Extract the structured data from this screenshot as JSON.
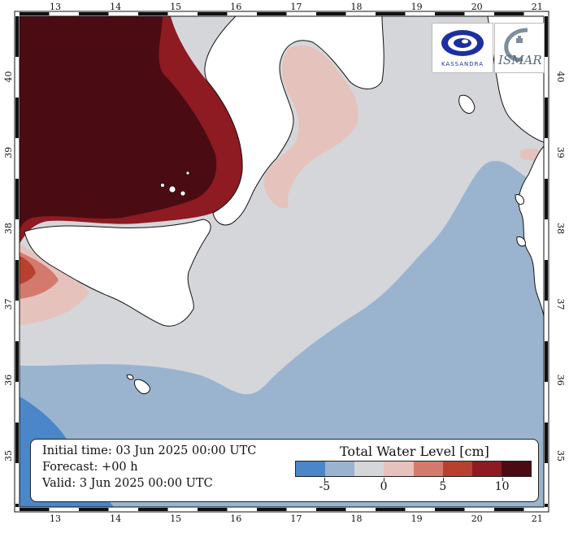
{
  "map": {
    "lon_labels": [
      "13",
      "14",
      "15",
      "16",
      "17",
      "18",
      "19",
      "20",
      "21"
    ],
    "lat_labels": [
      "35",
      "36",
      "37",
      "38",
      "39",
      "40"
    ],
    "colors": {
      "sea_neutral": "#d5d6da",
      "sea_minus5": "#9ab4d0",
      "sea_minus10": "#4a86c8",
      "land": "#ffffff",
      "coast": "#111111",
      "plus2": "#e6c2bc",
      "plus5": "#d47a6c",
      "plus7": "#b8402e",
      "plus9": "#8e1a22",
      "plus12": "#4a0c12"
    }
  },
  "info": {
    "initial_time": "Initial time: 03 Jun 2025 00:00 UTC",
    "forecast": "Forecast: +00 h",
    "valid": "Valid:  3 Jun 2025 00:00 UTC"
  },
  "legend": {
    "title": "Total Water Level [cm]",
    "swatches": [
      "#4a86c8",
      "#9ab4d0",
      "#d5d6da",
      "#e6c2bc",
      "#d47a6c",
      "#b8402e",
      "#8e1a22",
      "#4a0c12"
    ],
    "labels": [
      "-5",
      "0",
      "5",
      "10"
    ]
  },
  "logos": {
    "kassandra_text": "KASSANDRA",
    "ismar_text": "ISMAR"
  }
}
